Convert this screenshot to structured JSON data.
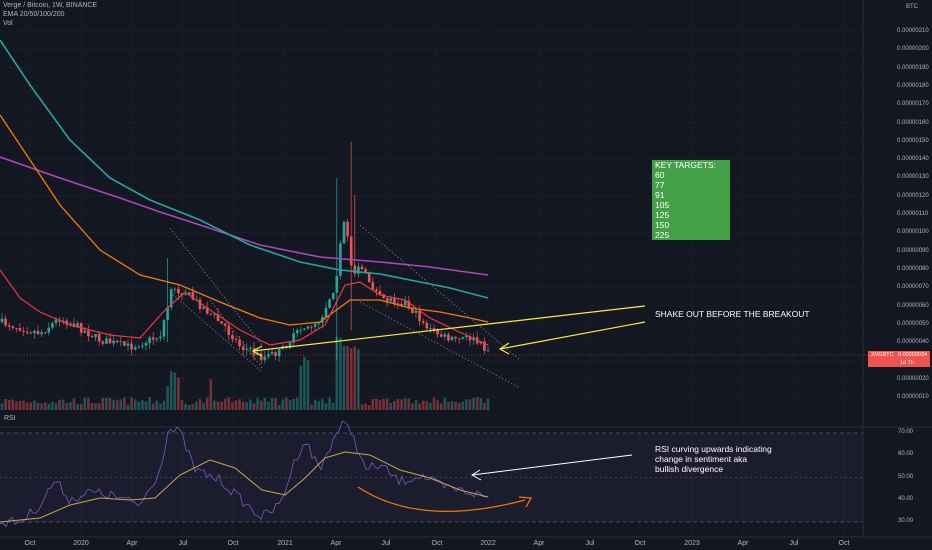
{
  "legend": {
    "title": "Verge / Bitcoin, 1W, BINANCE",
    "indicator": "EMA 20/50/100/200",
    "volume": "Vol"
  },
  "price_axis": {
    "unit": "BTC",
    "ticks": [
      "0.00000210",
      "0.00000200",
      "0.00000190",
      "0.00000180",
      "0.00000170",
      "0.00000160",
      "0.00000150",
      "0.00000140",
      "0.00000130",
      "0.00000120",
      "0.00000110",
      "0.00000100",
      "0.00000090",
      "0.00000080",
      "0.00000070",
      "0.00000060",
      "0.00000050",
      "0.00000040",
      "0.00000030",
      "0.00000020",
      "0.00000010"
    ]
  },
  "symbol_tag": {
    "symbol": "XVGBTC",
    "value": "0.00000034",
    "countdown": "1d 7h",
    "color": "#ef5350"
  },
  "rsi": {
    "label": "RSI",
    "ticks": [
      "70.00",
      "60.00",
      "50.00",
      "40.00",
      "30.00"
    ]
  },
  "time_axis": {
    "ticks": [
      "Oct",
      "2020",
      "Apr",
      "Jul",
      "Oct",
      "2021",
      "Apr",
      "Jul",
      "Oct",
      "2022",
      "Apr",
      "Jul",
      "Oct",
      "2023",
      "Apr",
      "Jul",
      "Oct"
    ]
  },
  "annotations": {
    "key_targets": {
      "heading": "KEY TARGETS:",
      "values": [
        "60",
        "77",
        "91",
        "105",
        "125",
        "150",
        "225"
      ],
      "background": "#43a047"
    },
    "shakeout": "SHAKE OUT BEFORE THE BREAKOUT",
    "rsi_note": [
      "RSI curving upwards indicating",
      "change in sentiment aka",
      "bullish divergence"
    ]
  },
  "colors": {
    "background": "#131722",
    "ema20": "#f23645",
    "ema50": "#f57c00",
    "ema100": "#26a69a",
    "ema200": "#ab47bc",
    "rsi_line": "#7e57c2",
    "rsi_ma": "#c8a84b",
    "candle_up": "#26a69a",
    "candle_down": "#ef5350",
    "annotation_arrow": "#ffeb3b",
    "divergence_arrow": "#f57c00"
  }
}
